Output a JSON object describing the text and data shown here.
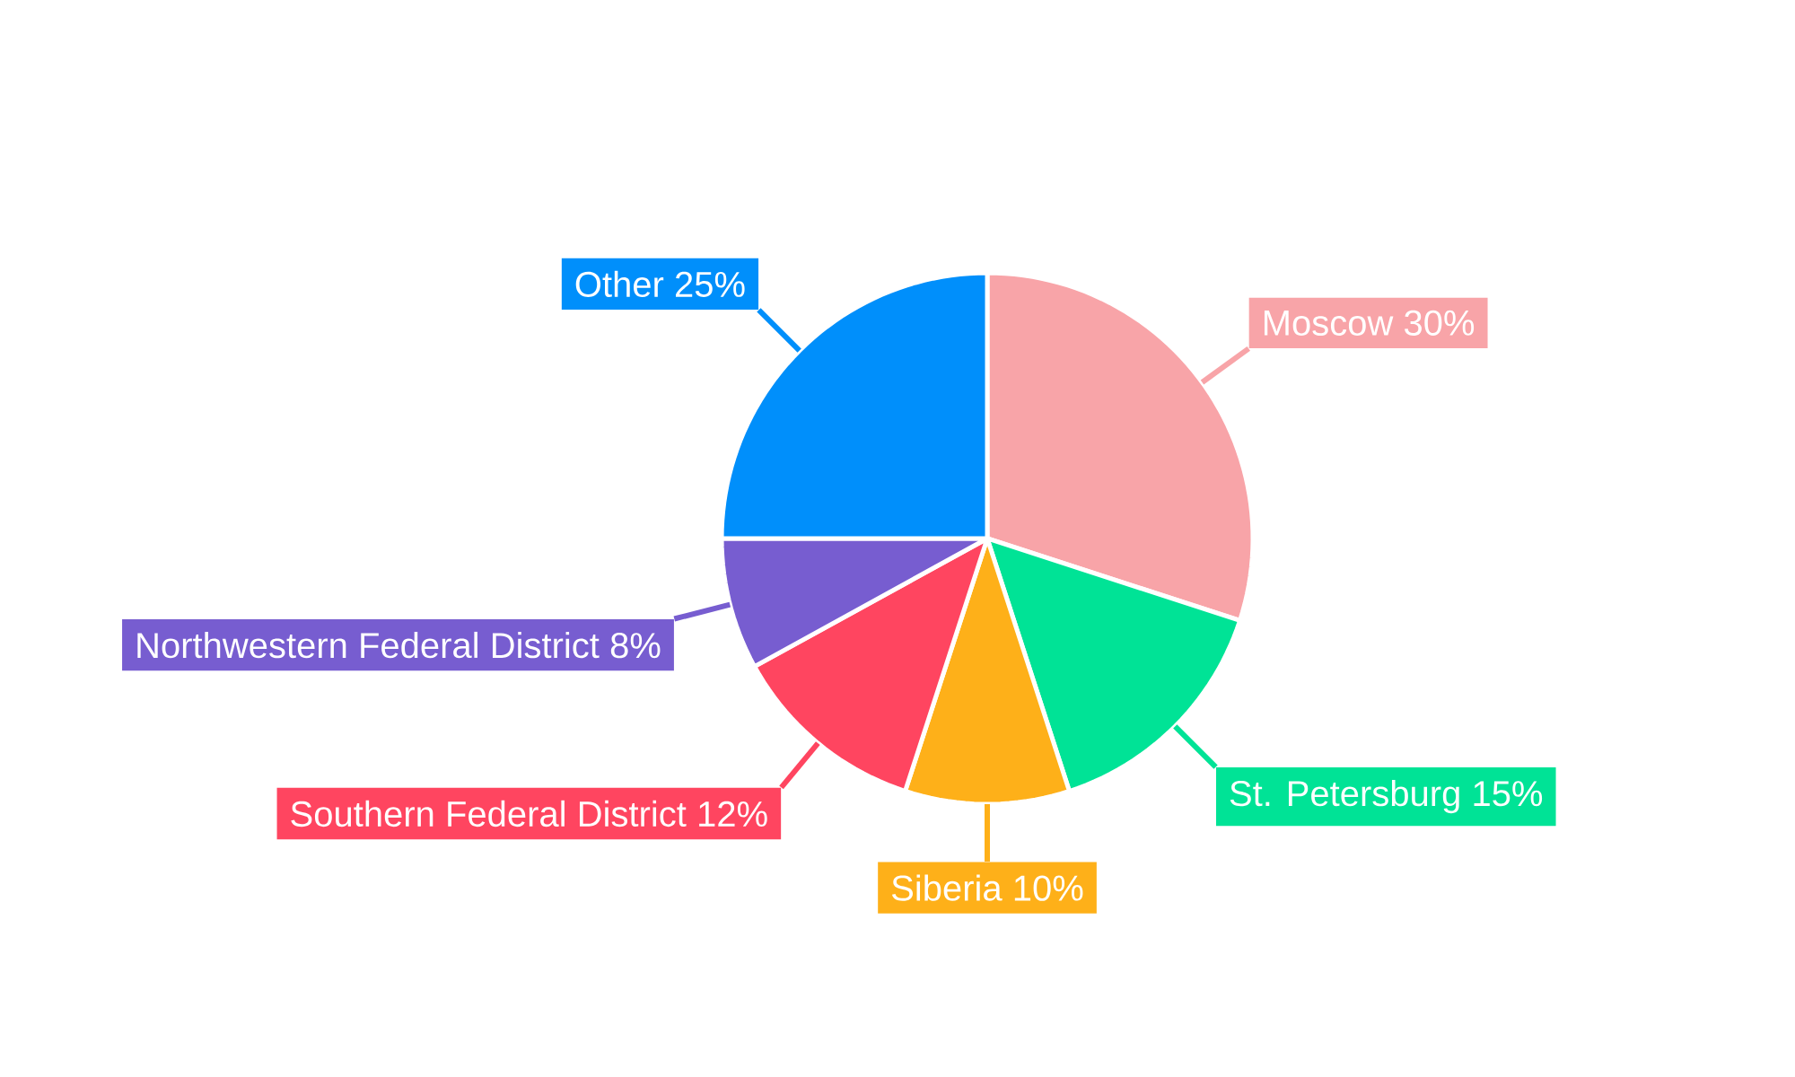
{
  "chart_data": {
    "type": "pie",
    "categories": [
      "Moscow",
      "St. Petersburg",
      "Siberia",
      "Southern Federal District",
      "Northwestern Federal District",
      "Other"
    ],
    "values": [
      30,
      15,
      10,
      12,
      8,
      25
    ],
    "colors": [
      "#f8a4a8",
      "#00e396",
      "#feb019",
      "#ff4560",
      "#775dd0",
      "#008ffb"
    ],
    "value_labels": [
      "30%",
      "15%",
      "10%",
      "12%",
      "8%",
      "25%"
    ]
  }
}
